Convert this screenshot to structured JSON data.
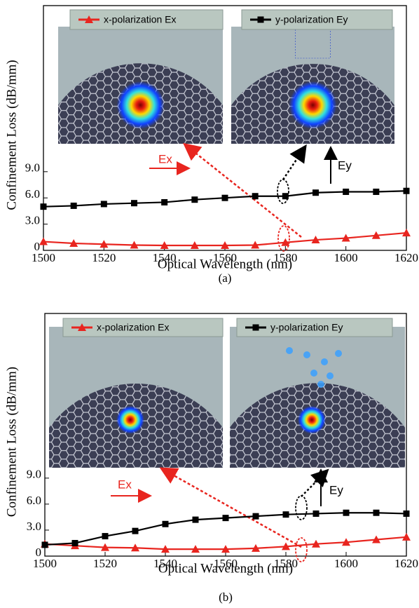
{
  "chart_data": [
    {
      "type": "line",
      "caption": "(a)",
      "xlabel": "Optical Wavelength (nm)",
      "ylabel": "Confinement Loss (dB/mm)",
      "x": [
        1500,
        1510,
        1520,
        1530,
        1540,
        1550,
        1560,
        1570,
        1580,
        1590,
        1600,
        1610,
        1620
      ],
      "xlim": [
        1500,
        1620
      ],
      "xticks": [
        1500,
        1520,
        1540,
        1560,
        1580,
        1600,
        1620
      ],
      "ylim": [
        0,
        28
      ],
      "yticks": [
        0,
        {
          "value": 3,
          "label": "3.0"
        },
        {
          "value": 6,
          "label": "6.0"
        },
        {
          "value": 9,
          "label": "9.0"
        }
      ],
      "series": [
        {
          "name": "x-polarization Ex",
          "color": "#e8251f",
          "marker": "triangle",
          "values": [
            1.0,
            0.8,
            0.7,
            0.6,
            0.56,
            0.56,
            0.56,
            0.6,
            0.9,
            1.2,
            1.4,
            1.7,
            2.0
          ]
        },
        {
          "name": "y-polarization Ey",
          "color": "#000000",
          "marker": "square",
          "values": [
            5.0,
            5.1,
            5.3,
            5.4,
            5.5,
            5.8,
            6.0,
            6.2,
            6.2,
            6.6,
            6.7,
            6.7,
            6.8
          ]
        }
      ],
      "annotations": [
        "Ex",
        "Ey"
      ]
    },
    {
      "type": "line",
      "caption": "(b)",
      "xlabel": "Optical Wavelength (nm)",
      "ylabel": "Confinement Loss (dB/mm)",
      "x": [
        1500,
        1510,
        1520,
        1530,
        1540,
        1550,
        1560,
        1570,
        1580,
        1590,
        1600,
        1610,
        1620
      ],
      "xlim": [
        1500,
        1620
      ],
      "xticks": [
        1500,
        1520,
        1540,
        1560,
        1580,
        1600,
        1620
      ],
      "ylim": [
        0,
        28
      ],
      "yticks": [
        0,
        {
          "value": 3,
          "label": "3.0"
        },
        {
          "value": 6,
          "label": "6.0"
        },
        {
          "value": 9,
          "label": "9.0"
        }
      ],
      "series": [
        {
          "name": "x-polarization Ex",
          "color": "#e8251f",
          "marker": "triangle",
          "values": [
            1.4,
            1.2,
            1.0,
            0.95,
            0.8,
            0.8,
            0.8,
            0.9,
            1.1,
            1.4,
            1.6,
            1.9,
            2.2
          ]
        },
        {
          "name": "y-polarization Ey",
          "color": "#000000",
          "marker": "square",
          "values": [
            1.3,
            1.5,
            2.3,
            2.9,
            3.7,
            4.2,
            4.4,
            4.6,
            4.8,
            4.9,
            5.0,
            5.0,
            4.9
          ]
        }
      ],
      "annotations": [
        "Ex",
        "Ey"
      ]
    }
  ]
}
